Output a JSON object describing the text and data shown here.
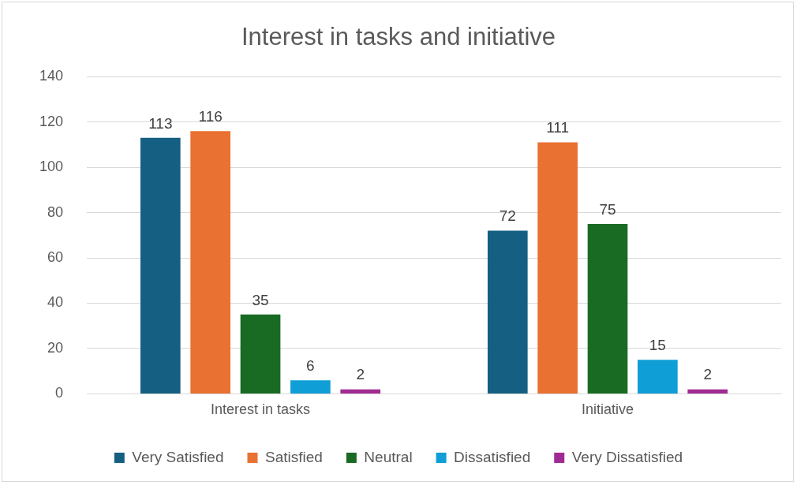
{
  "chart_data": {
    "type": "bar",
    "title": "Interest in tasks and initiative",
    "categories": [
      "Interest in tasks",
      "Initiative"
    ],
    "series": [
      {
        "name": "Very Satisfied",
        "color": "#156082",
        "values": [
          113,
          72
        ]
      },
      {
        "name": "Satisfied",
        "color": "#e97132",
        "values": [
          116,
          111
        ]
      },
      {
        "name": "Neutral",
        "color": "#196b24",
        "values": [
          35,
          75
        ]
      },
      {
        "name": "Dissatisfied",
        "color": "#0f9ed5",
        "values": [
          6,
          15
        ]
      },
      {
        "name": "Very Dissatisfied",
        "color": "#a02b93",
        "values": [
          2,
          2
        ]
      }
    ],
    "ylim": [
      0,
      140
    ],
    "yticks": [
      0,
      20,
      40,
      60,
      80,
      100,
      120,
      140
    ],
    "grid": "y",
    "legend": "bottom",
    "data_labels": true
  }
}
